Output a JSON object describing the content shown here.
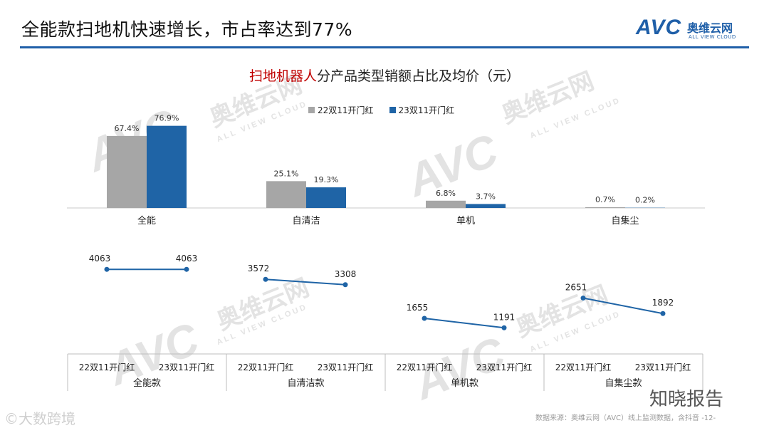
{
  "header": {
    "title": "全能款扫地机快速增长，市占率达到77%",
    "logo_avc": "AVC",
    "logo_cn": "奥维云网",
    "logo_en": "ALL VIEW CLOUD"
  },
  "chart_title": {
    "accent": "扫地机器人",
    "rest": "分产品类型销额占比及均价（元）"
  },
  "legend": {
    "s1": "22双11开门红",
    "s2": "23双11开门红"
  },
  "colors": {
    "s1": "#a6a6a6",
    "s2": "#1f64a6",
    "brand": "#1f5fa8"
  },
  "watermark": {
    "big": "AVC",
    "cn": "奥维云网",
    "en": "ALL VIEW CLOUD"
  },
  "chart_data": [
    {
      "type": "bar",
      "title": "扫地机器人分产品类型销额占比及均价（元）",
      "categories": [
        "全能",
        "自清洁",
        "单机",
        "自集尘"
      ],
      "series": [
        {
          "name": "22双11开门红",
          "values": [
            67.4,
            25.1,
            6.8,
            0.7
          ],
          "labels": [
            "67.4%",
            "25.1%",
            "6.8%",
            "0.7%"
          ]
        },
        {
          "name": "23双11开门红",
          "values": [
            76.9,
            19.3,
            3.7,
            0.2
          ],
          "labels": [
            "76.9%",
            "19.3%",
            "3.7%",
            "0.2%"
          ]
        }
      ],
      "ylim": [
        0,
        100
      ],
      "legend": "top-center"
    },
    {
      "type": "line",
      "categories": [
        "全能款",
        "自清洁款",
        "单机款",
        "自集尘款"
      ],
      "x": [
        "22双11开门红",
        "23双11开门红"
      ],
      "groups": [
        {
          "name": "全能款",
          "values": [
            4063,
            4063
          ]
        },
        {
          "name": "自清洁款",
          "values": [
            3572,
            3308
          ]
        },
        {
          "name": "单机款",
          "values": [
            1655,
            1191
          ]
        },
        {
          "name": "自集尘款",
          "values": [
            2651,
            1892
          ]
        }
      ]
    }
  ],
  "footer": {
    "source": "数据来源：奥维云网（AVC）线上监测数据，含抖音  -12-",
    "left": "©大数跨境",
    "zhixiao": "知晓报告"
  }
}
